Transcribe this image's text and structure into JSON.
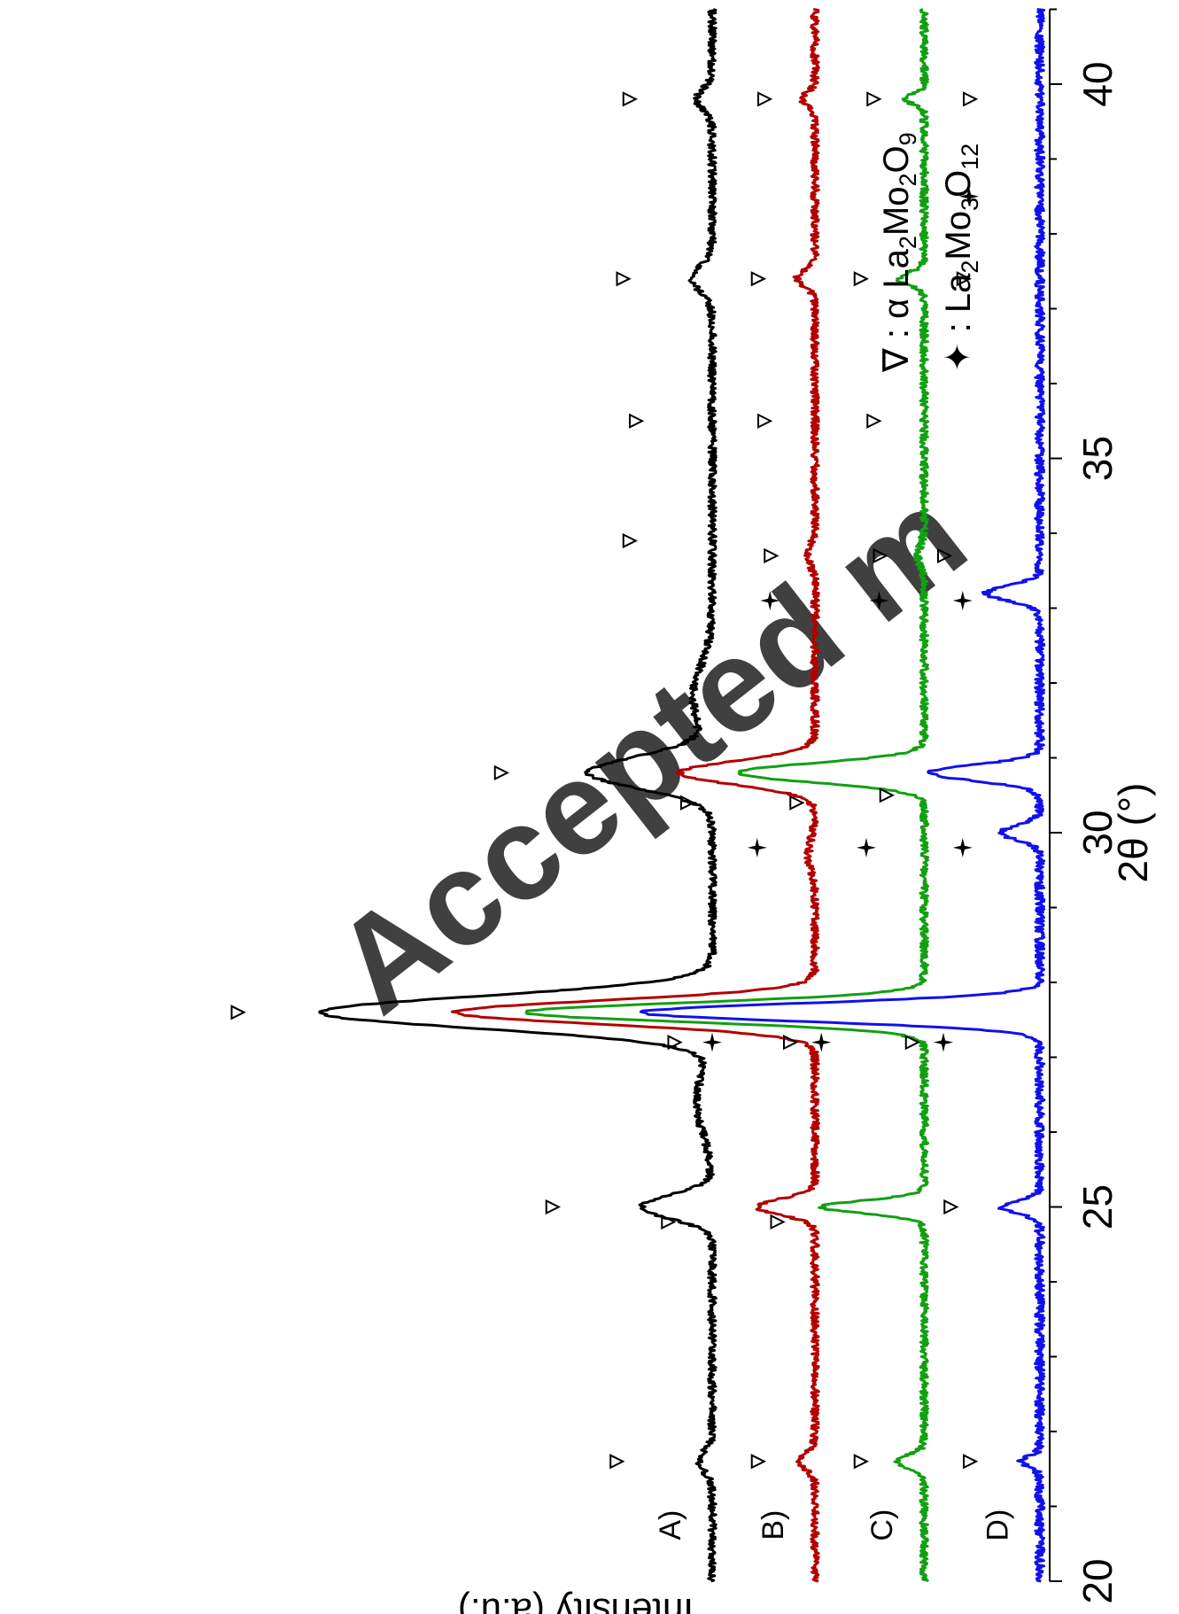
{
  "chart_data": {
    "type": "line",
    "orientation": "rotated-90-clockwise",
    "xlabel": "2θ (°)",
    "ylabel": "Intensity (a.u.)",
    "xlim": [
      20,
      41
    ],
    "xticks": [
      20,
      25,
      30,
      35,
      40
    ],
    "y_ticks_shown": false,
    "grid": false,
    "legend_position": "top-right",
    "legend": [
      {
        "marker": "∇",
        "separator": ":",
        "prefix": "α La",
        "formula": [
          [
            "La",
            ""
          ],
          [
            "2",
            "sub"
          ],
          [
            "Mo",
            ""
          ],
          [
            "2",
            "sub"
          ],
          [
            "O",
            ""
          ],
          [
            "9",
            "sub"
          ]
        ],
        "phase": "alpha-La2Mo2O9"
      },
      {
        "marker": "✦",
        "separator": ":",
        "formula": [
          [
            "La",
            ""
          ],
          [
            "2",
            "sub"
          ],
          [
            "Mo",
            ""
          ],
          [
            "3",
            "sub"
          ],
          [
            "O",
            ""
          ],
          [
            "12",
            "sub"
          ]
        ],
        "phase": "La2Mo3O12"
      }
    ],
    "watermark": "Accepted m",
    "series": [
      {
        "name": "A)",
        "color": "#000000",
        "baseline": 0.8,
        "noise": 0.03,
        "peaks": [
          {
            "x": 21.6,
            "h": 0.1,
            "w": 0.2
          },
          {
            "x": 25.0,
            "h": 0.55,
            "w": 0.22
          },
          {
            "x": 26.4,
            "h": 0.12,
            "w": 0.6
          },
          {
            "x": 27.6,
            "h": 3.05,
            "w": 0.3
          },
          {
            "x": 30.8,
            "h": 0.95,
            "w": 0.3
          },
          {
            "x": 31.8,
            "h": 0.15,
            "w": 0.6
          },
          {
            "x": 37.4,
            "h": 0.15,
            "w": 0.25
          },
          {
            "x": 39.8,
            "h": 0.12,
            "w": 0.2
          }
        ],
        "markers": [
          {
            "x": 21.6,
            "type": "triangle",
            "y": 1.55
          },
          {
            "x": 25.0,
            "type": "triangle",
            "y": 2.05
          },
          {
            "x": 27.6,
            "type": "triangle",
            "y": 4.5
          },
          {
            "x": 30.8,
            "type": "triangle",
            "y": 2.45
          },
          {
            "x": 33.9,
            "type": "triangle",
            "y": 1.45
          },
          {
            "x": 35.5,
            "type": "triangle",
            "y": 1.4
          },
          {
            "x": 37.4,
            "type": "triangle",
            "y": 1.5
          },
          {
            "x": 39.8,
            "type": "triangle",
            "y": 1.45
          }
        ]
      },
      {
        "name": "B)",
        "color": "#b30000",
        "baseline": 0.0,
        "noise": 0.03,
        "peaks": [
          {
            "x": 21.6,
            "h": 0.13,
            "w": 0.15
          },
          {
            "x": 25.0,
            "h": 0.45,
            "w": 0.15
          },
          {
            "x": 27.6,
            "h": 2.8,
            "w": 0.22
          },
          {
            "x": 29.7,
            "h": 0.05,
            "w": 0.3
          },
          {
            "x": 30.8,
            "h": 1.05,
            "w": 0.22
          },
          {
            "x": 33.7,
            "h": 0.05,
            "w": 0.2
          },
          {
            "x": 37.4,
            "h": 0.14,
            "w": 0.15
          },
          {
            "x": 39.8,
            "h": 0.1,
            "w": 0.12
          }
        ],
        "markers": [
          {
            "x": 21.6,
            "type": "triangle",
            "y": 0.45
          },
          {
            "x": 24.8,
            "type": "triangle",
            "y": 1.15
          },
          {
            "x": 27.2,
            "type": "triangle",
            "y": 1.1
          },
          {
            "x": 27.2,
            "type": "star",
            "y": 0.8
          },
          {
            "x": 29.8,
            "type": "star",
            "y": 0.45
          },
          {
            "x": 30.4,
            "type": "triangle",
            "y": 1.0
          },
          {
            "x": 33.1,
            "type": "star",
            "y": 0.35
          },
          {
            "x": 33.7,
            "type": "triangle",
            "y": 0.35
          },
          {
            "x": 35.5,
            "type": "triangle",
            "y": 0.4
          },
          {
            "x": 37.4,
            "type": "triangle",
            "y": 0.45
          },
          {
            "x": 39.8,
            "type": "triangle",
            "y": 0.4
          }
        ]
      },
      {
        "name": "C)",
        "color": "#11a011",
        "baseline": -0.85,
        "noise": 0.03,
        "peaks": [
          {
            "x": 21.6,
            "h": 0.22,
            "w": 0.12
          },
          {
            "x": 25.0,
            "h": 0.8,
            "w": 0.12
          },
          {
            "x": 27.6,
            "h": 3.1,
            "w": 0.18
          },
          {
            "x": 30.8,
            "h": 1.45,
            "w": 0.18
          },
          {
            "x": 33.7,
            "h": 0.05,
            "w": 0.2
          },
          {
            "x": 37.4,
            "h": 0.2,
            "w": 0.12
          },
          {
            "x": 39.8,
            "h": 0.14,
            "w": 0.1
          }
        ],
        "markers": [
          {
            "x": 21.6,
            "type": "triangle",
            "y": -0.35
          },
          {
            "x": 24.8,
            "type": "triangle",
            "y": 0.3
          },
          {
            "x": 27.2,
            "type": "triangle",
            "y": 0.2
          },
          {
            "x": 27.2,
            "type": "star",
            "y": -0.05
          },
          {
            "x": 29.8,
            "type": "star",
            "y": -0.4
          },
          {
            "x": 30.4,
            "type": "triangle",
            "y": 0.15
          },
          {
            "x": 33.1,
            "type": "star",
            "y": -0.5
          },
          {
            "x": 33.7,
            "type": "triangle",
            "y": -0.5
          },
          {
            "x": 35.5,
            "type": "triangle",
            "y": -0.45
          },
          {
            "x": 37.4,
            "type": "triangle",
            "y": -0.35
          },
          {
            "x": 39.8,
            "type": "triangle",
            "y": -0.45
          }
        ]
      },
      {
        "name": "D)",
        "color": "#1010ee",
        "baseline": -1.75,
        "noise": 0.035,
        "peaks": [
          {
            "x": 21.6,
            "h": 0.14,
            "w": 0.1
          },
          {
            "x": 25.0,
            "h": 0.3,
            "w": 0.12
          },
          {
            "x": 27.6,
            "h": 3.1,
            "w": 0.17
          },
          {
            "x": 30.0,
            "h": 0.3,
            "w": 0.14
          },
          {
            "x": 30.8,
            "h": 0.85,
            "w": 0.15
          },
          {
            "x": 33.2,
            "h": 0.42,
            "w": 0.14
          }
        ],
        "markers": [
          {
            "x": 21.6,
            "type": "triangle",
            "y": -1.2
          },
          {
            "x": 25.0,
            "type": "triangle",
            "y": -1.05
          },
          {
            "x": 27.2,
            "type": "triangle",
            "y": -0.75
          },
          {
            "x": 27.2,
            "type": "star",
            "y": -1.0
          },
          {
            "x": 29.8,
            "type": "star",
            "y": -1.15
          },
          {
            "x": 30.5,
            "type": "triangle",
            "y": -0.55
          },
          {
            "x": 33.1,
            "type": "star",
            "y": -1.15
          },
          {
            "x": 33.7,
            "type": "triangle",
            "y": -1.0
          },
          {
            "x": 37.4,
            "type": "triangle",
            "y": -1.15
          },
          {
            "x": 38.5,
            "type": "star",
            "y": -1.2
          },
          {
            "x": 39.8,
            "type": "triangle",
            "y": -1.2
          }
        ]
      }
    ]
  }
}
